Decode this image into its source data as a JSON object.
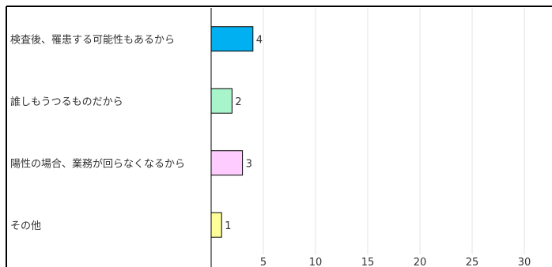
{
  "chart_data": {
    "type": "bar",
    "orientation": "horizontal",
    "categories": [
      "検査後、罹患する可能性もあるから",
      "誰しもうつるものだから",
      "陽性の場合、業務が回らなくなるから",
      "その他"
    ],
    "values": [
      4,
      2,
      3,
      1
    ],
    "data_labels": [
      "4",
      "2",
      "3",
      "1"
    ],
    "colors": [
      "#00b0f0",
      "#a8f5cc",
      "#ffccff",
      "#ffff99"
    ],
    "x_ticks": [
      "5",
      "10",
      "15",
      "20",
      "25",
      "30"
    ],
    "x_tick_values": [
      5,
      10,
      15,
      20,
      25,
      30
    ],
    "xlim": [
      0,
      32
    ],
    "grid": true,
    "legend": "none"
  }
}
